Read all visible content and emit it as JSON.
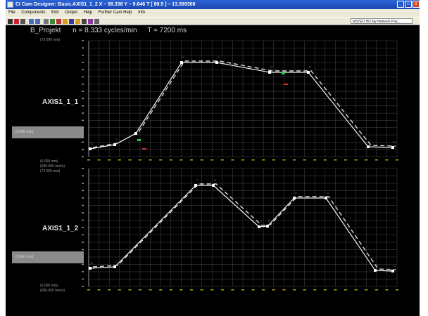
{
  "window": {
    "title": "CI Cam Designer: Basic.AXIS1_1_2   X – 99.338  Y – 9.646  T [ 89.5 ] – 13.399308"
  },
  "menu": [
    "File",
    "Components",
    "Edit",
    "Output",
    "Help",
    "Further Cam Help",
    "Info"
  ],
  "toolbar": {
    "status": "MS7ED HD My Network Plac..."
  },
  "header": {
    "project": "B_Projekt",
    "speed": "n = 8.333 cycles/min",
    "period": "T = 7200 ms"
  },
  "axes": [
    {
      "name": "AXIS1_1_1",
      "top_label": "(72.000 mm)",
      "value_box": "(0.000 mm)",
      "bottom_label": "(0.000 mm)",
      "bottom_sub": "(000.000 mm/s)",
      "color_line": "#ffffff",
      "color_dash": "#e0e0e0"
    },
    {
      "name": "AXIS1_1_2",
      "top_label": "(72.000 mm)",
      "value_box": "(0.000 mm)",
      "bottom_label": "(0.000 mm)",
      "bottom_sub": "(000.000 mm/s)",
      "color_line": "#ffffff",
      "color_dash": "#e0e0e0"
    }
  ],
  "colors": {
    "grid": "#4a4a4a",
    "tick": "#b8b000",
    "point": "#ffffff",
    "accent_green": "#2ecc40",
    "accent_red": "#d63333"
  }
}
